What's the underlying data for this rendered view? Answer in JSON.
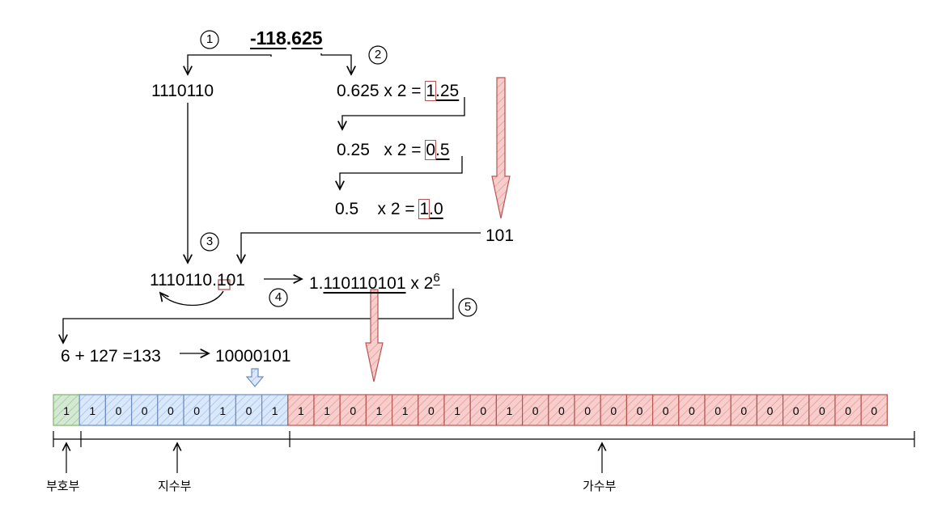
{
  "number": {
    "int_part": "-118",
    "dot": ".",
    "frac_part": "625"
  },
  "steps": [
    "1",
    "2",
    "3",
    "4",
    "5"
  ],
  "integer_binary": "1110110",
  "fraction_steps": [
    {
      "pre": "0.625 x 2 = ",
      "digit": "1",
      "rest": ".25"
    },
    {
      "pre": "0.25   x 2 = ",
      "digit": "0",
      "rest": ".5"
    },
    {
      "pre": "0.5    x 2 = ",
      "digit": "1",
      "rest": ".0"
    }
  ],
  "fraction_binary": "101",
  "combined": {
    "int": "1110110",
    "dot": ".",
    "frac": "101"
  },
  "normalized": {
    "prefix": "1.",
    "mantissa": "110110101",
    "times": " x 2",
    "exp": "6"
  },
  "exponent_calc": {
    "expr": "6 + 127 =133",
    "result": "10000101"
  },
  "sign_bits": [
    "1"
  ],
  "exponent_bits": [
    "1",
    "0",
    "0",
    "0",
    "0",
    "1",
    "0",
    "1"
  ],
  "mantissa_bits": [
    "1",
    "1",
    "0",
    "1",
    "1",
    "0",
    "1",
    "0",
    "1",
    "0",
    "0",
    "0",
    "0",
    "0",
    "0",
    "0",
    "0",
    "0",
    "0",
    "0",
    "0",
    "0",
    "0"
  ],
  "labels": {
    "sign": "부호부",
    "exponent": "지수부",
    "mantissa": "가수부"
  },
  "colors": {
    "sign_fill": "#d5e8d4",
    "sign_stroke": "#82b366",
    "exp_fill": "#dae8fc",
    "exp_stroke": "#6c8ebf",
    "man_fill": "#f8cecc",
    "man_stroke": "#b85450"
  }
}
